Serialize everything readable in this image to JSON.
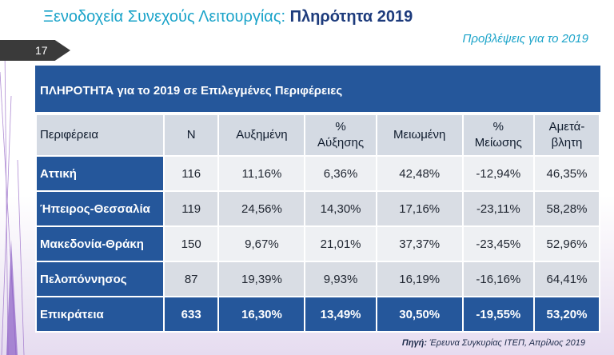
{
  "title": {
    "part1": "Ξενοδοχεία Συνεχούς Λειτουργίας: ",
    "part2": "Πληρότητα 2019"
  },
  "subtitle": "Προβλέψεις για το 2019",
  "page_number": "17",
  "table": {
    "header": "ΠΛΗΡΟΤΗΤΑ για το 2019 σε Επιλεγμένες Περιφέρειες",
    "columns": [
      {
        "line1": "Περιφέρεια",
        "line2": ""
      },
      {
        "line1": "N",
        "line2": ""
      },
      {
        "line1": "Αυξημένη",
        "line2": ""
      },
      {
        "line1": "%",
        "line2": "Αύξησης"
      },
      {
        "line1": "Μειωμένη",
        "line2": ""
      },
      {
        "line1": "%",
        "line2": "Μείωσης"
      },
      {
        "line1": "Αμετά-",
        "line2": "βλητη"
      }
    ],
    "rows": [
      {
        "region": "Αττική",
        "n": "116",
        "increased": "11,16%",
        "pct_increase": "6,36%",
        "decreased": "42,48%",
        "pct_decrease": "-12,94%",
        "unchanged": "46,35%"
      },
      {
        "region": "Ήπειρος-Θεσσαλία",
        "n": "119",
        "increased": "24,56%",
        "pct_increase": "14,30%",
        "decreased": "17,16%",
        "pct_decrease": "-23,11%",
        "unchanged": "58,28%"
      },
      {
        "region": "Μακεδονία-Θράκη",
        "n": "150",
        "increased": "9,67%",
        "pct_increase": "21,01%",
        "decreased": "37,37%",
        "pct_decrease": "-23,45%",
        "unchanged": "52,96%"
      },
      {
        "region": "Πελοπόννησος",
        "n": "87",
        "increased": "19,39%",
        "pct_increase": "9,93%",
        "decreased": "16,19%",
        "pct_decrease": "-16,16%",
        "unchanged": "64,41%"
      }
    ],
    "total": {
      "region": "Επικράτεια",
      "n": "633",
      "increased": "16,30%",
      "pct_increase": "13,49%",
      "decreased": "30,50%",
      "pct_decrease": "-19,55%",
      "unchanged": "53,20%"
    }
  },
  "source": {
    "label": "Πηγή:",
    "text": " Έρευνα Συγκυρίας ΙΤΕΠ, Απρίλιος 2019"
  },
  "colors": {
    "accent_blue": "#25579b",
    "title_cyan": "#1aa3c9",
    "title_navy": "#1d3b7c"
  }
}
